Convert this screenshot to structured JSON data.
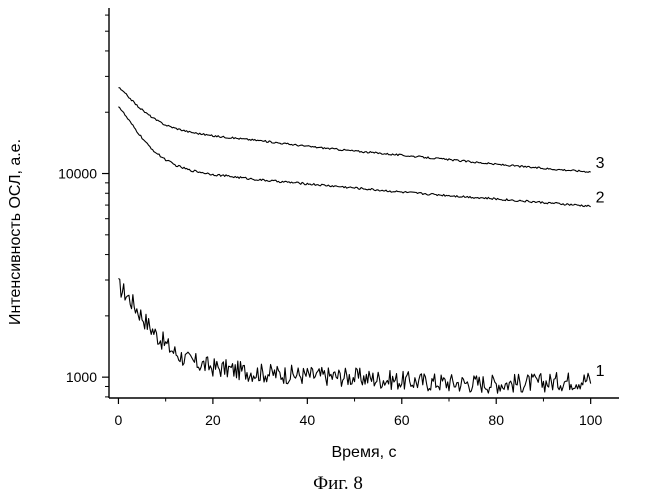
{
  "caption": "Фиг. 8",
  "chart_data": {
    "type": "line",
    "title": "",
    "xlabel": "Время, с",
    "ylabel": "Интенсивность ОСЛ, а.е.",
    "xlim": [
      -2,
      106
    ],
    "ylim": [
      790,
      65000
    ],
    "yscale": "log",
    "grid": false,
    "legend": "none",
    "x_ticks": [
      0,
      20,
      40,
      60,
      80,
      100
    ],
    "y_ticks": [
      1000,
      10000
    ],
    "series": [
      {
        "name": "1",
        "x": [
          0,
          2,
          4,
          6,
          8,
          10,
          12,
          15,
          20,
          25,
          30,
          40,
          50,
          60,
          70,
          80,
          90,
          95,
          100
        ],
        "values": [
          2800,
          2500,
          2150,
          1850,
          1620,
          1450,
          1320,
          1200,
          1120,
          1080,
          1050,
          1020,
          1000,
          960,
          940,
          930,
          940,
          960,
          970
        ]
      },
      {
        "name": "2",
        "x": [
          0,
          2,
          4,
          6,
          8,
          10,
          12,
          15,
          20,
          25,
          30,
          40,
          50,
          60,
          70,
          80,
          90,
          100
        ],
        "values": [
          21500,
          18500,
          16000,
          14000,
          12600,
          11700,
          11000,
          10400,
          9900,
          9600,
          9300,
          8900,
          8500,
          8100,
          7800,
          7500,
          7200,
          6900
        ]
      },
      {
        "name": "3",
        "x": [
          0,
          2,
          4,
          6,
          8,
          10,
          12,
          15,
          20,
          25,
          30,
          40,
          50,
          60,
          70,
          80,
          90,
          100
        ],
        "values": [
          26500,
          24000,
          21500,
          19700,
          18300,
          17300,
          16700,
          16000,
          15300,
          14900,
          14500,
          13600,
          12900,
          12300,
          11700,
          11100,
          10600,
          10200
        ]
      }
    ]
  }
}
